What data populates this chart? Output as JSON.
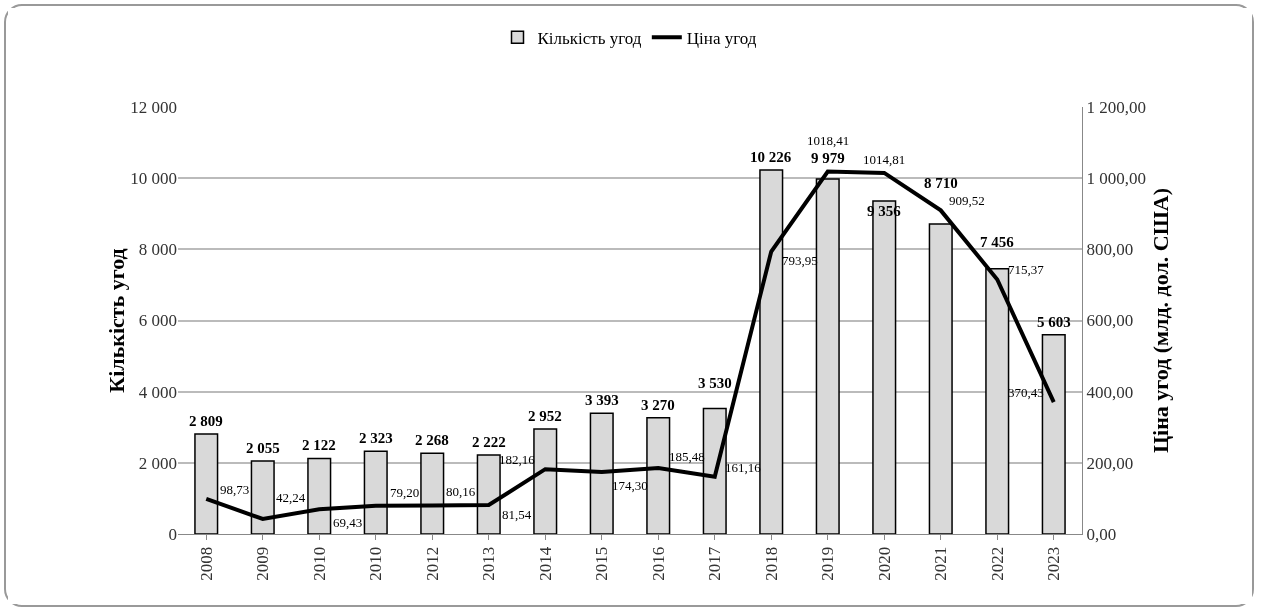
{
  "chart_data": {
    "type": "bar",
    "categories": [
      "2008",
      "2009",
      "2010",
      "2010",
      "2012",
      "2013",
      "2014",
      "2015",
      "2016",
      "2017",
      "2018",
      "2019",
      "2020",
      "2021",
      "2022",
      "2023"
    ],
    "ylabel": "Кількість угод",
    "y2label": "Ціна угод (млд. дол. США)",
    "series": [
      {
        "name": "Кількість угод",
        "color": "#d9d9d9",
        "values": [
          2809,
          2055,
          2122,
          2323,
          2268,
          2222,
          2952,
          3393,
          3270,
          3530,
          10226,
          9979,
          9356,
          8710,
          7456,
          5603
        ],
        "value_labels": [
          "2 809",
          "2 055",
          "2 122",
          "2 323",
          "2 268",
          "2 222",
          "2 952",
          "3 393",
          "3 270",
          "3 530",
          "10 226",
          "9 979",
          "9 356",
          "8 710",
          "7 456",
          "5 603"
        ]
      },
      {
        "name": "Ціна угод",
        "type": "line",
        "axis": "y2",
        "color": "#000000",
        "values": [
          98.73,
          42.24,
          69.43,
          79.2,
          80.16,
          81.54,
          182.16,
          174.3,
          185.48,
          161.16,
          793.95,
          1018.41,
          1014.81,
          909.52,
          715.37,
          370.43
        ],
        "value_labels": [
          "98,73",
          "42,24",
          "69,43",
          "79,20",
          "80,16",
          "81,54",
          "182,16",
          "174,30",
          "185,48",
          "161,16",
          "793,95",
          "1018,41",
          "1014,81",
          "909,52",
          "715,37",
          "370,43"
        ]
      }
    ],
    "ylim": [
      0,
      12000
    ],
    "yticks": [
      0,
      {
        "value": 2000,
        "label": "2 000"
      },
      {
        "value": 4000,
        "label": "4 000"
      },
      {
        "value": 6000,
        "label": "6 000"
      },
      {
        "value": 8000,
        "label": "8 000"
      },
      {
        "value": 10000,
        "label": "10 000"
      },
      {
        "value": 12000,
        "label": "12 000"
      }
    ],
    "y2lim": [
      0,
      1200
    ],
    "y2ticks": [
      {
        "value": 0,
        "label": "0,00"
      },
      {
        "value": 200,
        "label": "200,00"
      },
      {
        "value": 400,
        "label": "400,00"
      },
      {
        "value": 600,
        "label": "600,00"
      },
      {
        "value": 800,
        "label": "800,00"
      },
      {
        "value": 1000,
        "label": "1 000,00"
      },
      {
        "value": 1200,
        "label": "1 200,00"
      }
    ],
    "grid": "y",
    "legend": "top",
    "marker": "none",
    "line_style": "solid"
  }
}
